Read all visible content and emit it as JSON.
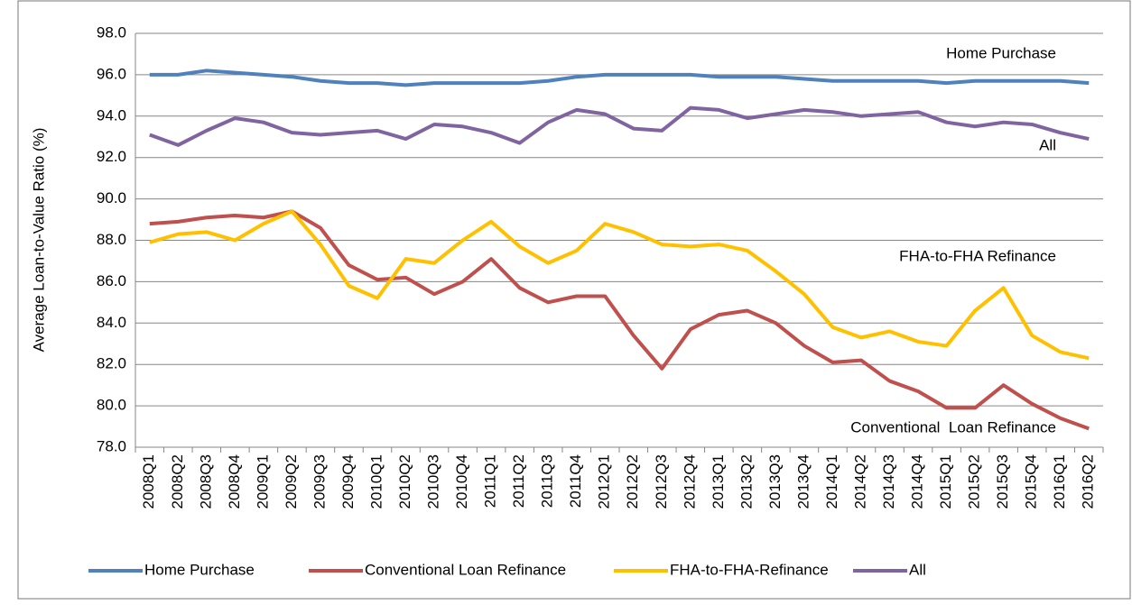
{
  "chart_data": {
    "type": "line",
    "y_label": "Average Loan-to-Value Ratio (%)",
    "categories": [
      "2008Q1",
      "2008Q2",
      "2008Q3",
      "2008Q4",
      "2009Q1",
      "2009Q2",
      "2009Q3",
      "2009Q4",
      "2010Q1",
      "2010Q2",
      "2010Q3",
      "2010Q4",
      "2011Q1",
      "2011Q2",
      "2011Q3",
      "2011Q4",
      "2012Q1",
      "2012Q2",
      "2012Q3",
      "2012Q4",
      "2013Q1",
      "2013Q2",
      "2013Q3",
      "2013Q4",
      "2014Q1",
      "2014Q2",
      "2014Q3",
      "2014Q4",
      "2015Q1",
      "2015Q2",
      "2015Q3",
      "2015Q4",
      "2016Q1",
      "2016Q2"
    ],
    "series": [
      {
        "name": "Home Purchase",
        "color": "#4f81bd",
        "values": [
          96.0,
          96.0,
          96.2,
          96.1,
          96.0,
          95.9,
          95.7,
          95.6,
          95.6,
          95.5,
          95.6,
          95.6,
          95.6,
          95.6,
          95.7,
          95.9,
          96.0,
          96.0,
          96.0,
          96.0,
          95.9,
          95.9,
          95.9,
          95.8,
          95.7,
          95.7,
          95.7,
          95.7,
          95.6,
          95.7,
          95.7,
          95.7,
          95.7,
          95.6
        ]
      },
      {
        "name": "Conventional Loan Refinance",
        "color": "#c0504d",
        "values": [
          88.8,
          88.9,
          89.1,
          89.2,
          89.1,
          89.4,
          88.6,
          86.8,
          86.1,
          86.2,
          85.4,
          86.0,
          87.1,
          85.7,
          85.0,
          85.3,
          85.3,
          83.4,
          81.8,
          83.7,
          84.4,
          84.6,
          84.0,
          82.9,
          82.1,
          82.2,
          81.2,
          80.7,
          79.9,
          79.9,
          81.0,
          80.1,
          79.4,
          78.9
        ]
      },
      {
        "name": "FHA-to-FHA-Refinance",
        "color": "#ffc000",
        "values": [
          87.9,
          88.3,
          88.4,
          88.0,
          88.8,
          89.4,
          87.8,
          85.8,
          85.2,
          87.1,
          86.9,
          88.0,
          88.9,
          87.7,
          86.9,
          87.5,
          88.8,
          88.4,
          87.8,
          87.7,
          87.8,
          87.5,
          86.5,
          85.4,
          83.8,
          83.3,
          83.6,
          83.1,
          82.9,
          84.6,
          85.7,
          83.4,
          82.6,
          82.3
        ]
      },
      {
        "name": "All",
        "color": "#8064a2",
        "values": [
          93.1,
          92.6,
          93.3,
          93.9,
          93.7,
          93.2,
          93.1,
          93.2,
          93.3,
          92.9,
          93.6,
          93.5,
          93.2,
          92.7,
          93.7,
          94.3,
          94.1,
          93.4,
          93.3,
          94.4,
          94.3,
          93.9,
          94.1,
          94.3,
          94.2,
          94.0,
          94.1,
          94.2,
          93.7,
          93.5,
          93.7,
          93.6,
          93.2,
          92.9
        ]
      }
    ],
    "annotations": [
      "Home Purchase",
      "All",
      "FHA-to-FHA Refinance",
      "Conventional  Loan Refinance"
    ],
    "ylim": [
      78,
      98
    ],
    "yticks": [
      {
        "value": 78,
        "label": "78.0"
      },
      {
        "value": 80,
        "label": "80.0"
      },
      {
        "value": 82,
        "label": "82.0"
      },
      {
        "value": 84,
        "label": "84.0"
      },
      {
        "value": 86,
        "label": "86.0"
      },
      {
        "value": 88,
        "label": "88.0"
      },
      {
        "value": 90,
        "label": "90.0"
      },
      {
        "value": 92,
        "label": "92.0"
      },
      {
        "value": 94,
        "label": "94.0"
      },
      {
        "value": 96,
        "label": "96.0"
      },
      {
        "value": 98,
        "label": "98.0"
      }
    ],
    "grid": true,
    "legend": "bottom"
  }
}
